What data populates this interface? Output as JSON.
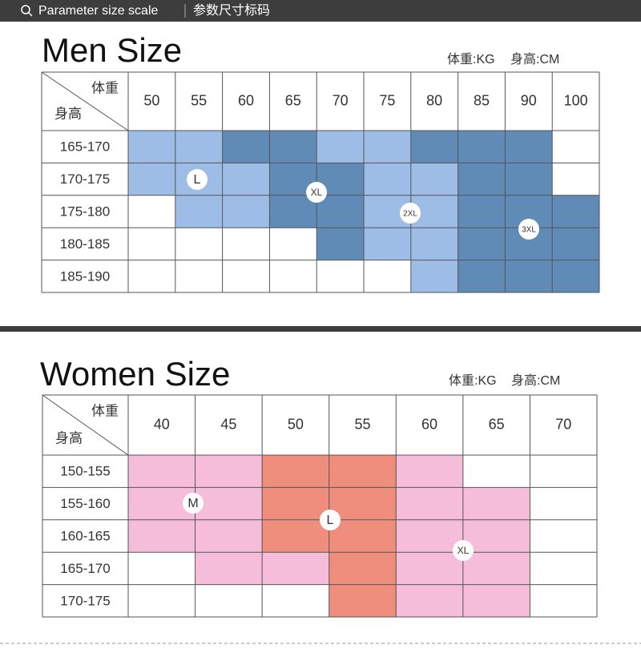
{
  "header": {
    "title": "Parameter size scale",
    "subtitle": "参数尺寸标码"
  },
  "men": {
    "title": "Men Size",
    "unit_weight": "体重:KG",
    "unit_height": "身高:CM",
    "corner_top": "体重",
    "corner_bottom": "身高",
    "columns": [
      "50",
      "55",
      "60",
      "65",
      "70",
      "75",
      "80",
      "85",
      "90",
      "100"
    ],
    "rows": [
      "165-170",
      "170-175",
      "175-180",
      "180-185",
      "185-190"
    ],
    "cells": [
      [
        "#9dbde6",
        "#9dbde6",
        "#5f8bb6",
        "#5f8bb6",
        "#9dbde6",
        "#9dbde6",
        "#5f8bb6",
        "#5f8bb6",
        "#5f8bb6",
        null
      ],
      [
        "#9dbde6",
        "#9dbde6",
        "#9dbde6",
        "#5f8bb6",
        "#5f8bb6",
        "#9dbde6",
        "#9dbde6",
        "#5f8bb6",
        "#5f8bb6",
        null
      ],
      [
        null,
        "#9dbde6",
        "#9dbde6",
        "#5f8bb6",
        "#5f8bb6",
        "#9dbde6",
        "#9dbde6",
        "#5f8bb6",
        "#5f8bb6",
        "#5f8bb6"
      ],
      [
        null,
        null,
        null,
        null,
        "#5f8bb6",
        "#9dbde6",
        "#9dbde6",
        "#5f8bb6",
        "#5f8bb6",
        "#5f8bb6"
      ],
      [
        null,
        null,
        null,
        null,
        null,
        null,
        "#9dbde6",
        "#5f8bb6",
        "#5f8bb6",
        "#5f8bb6"
      ]
    ],
    "badges": [
      "L",
      "XL",
      "2XL",
      "3XL"
    ]
  },
  "women": {
    "title": "Women Size",
    "unit_weight": "体重:KG",
    "unit_height": "身高:CM",
    "corner_top": "体重",
    "corner_bottom": "身高",
    "columns": [
      "40",
      "45",
      "50",
      "55",
      "60",
      "65",
      "70"
    ],
    "rows": [
      "150-155",
      "155-160",
      "160-165",
      "165-170",
      "170-175"
    ],
    "cells": [
      [
        "#f5bdd9",
        "#f5bdd9",
        "#ef8e7c",
        "#ef8e7c",
        "#f5bdd9",
        null,
        null
      ],
      [
        "#f5bdd9",
        "#f5bdd9",
        "#ef8e7c",
        "#ef8e7c",
        "#f5bdd9",
        "#f5bdd9",
        null
      ],
      [
        "#f5bdd9",
        "#f5bdd9",
        "#ef8e7c",
        "#ef8e7c",
        "#f5bdd9",
        "#f5bdd9",
        null
      ],
      [
        null,
        "#f5bdd9",
        "#f5bdd9",
        "#ef8e7c",
        "#f5bdd9",
        "#f5bdd9",
        null
      ],
      [
        null,
        null,
        null,
        "#ef8e7c",
        "#f5bdd9",
        "#f5bdd9",
        null
      ]
    ],
    "badges": [
      "M",
      "L",
      "XL"
    ]
  }
}
